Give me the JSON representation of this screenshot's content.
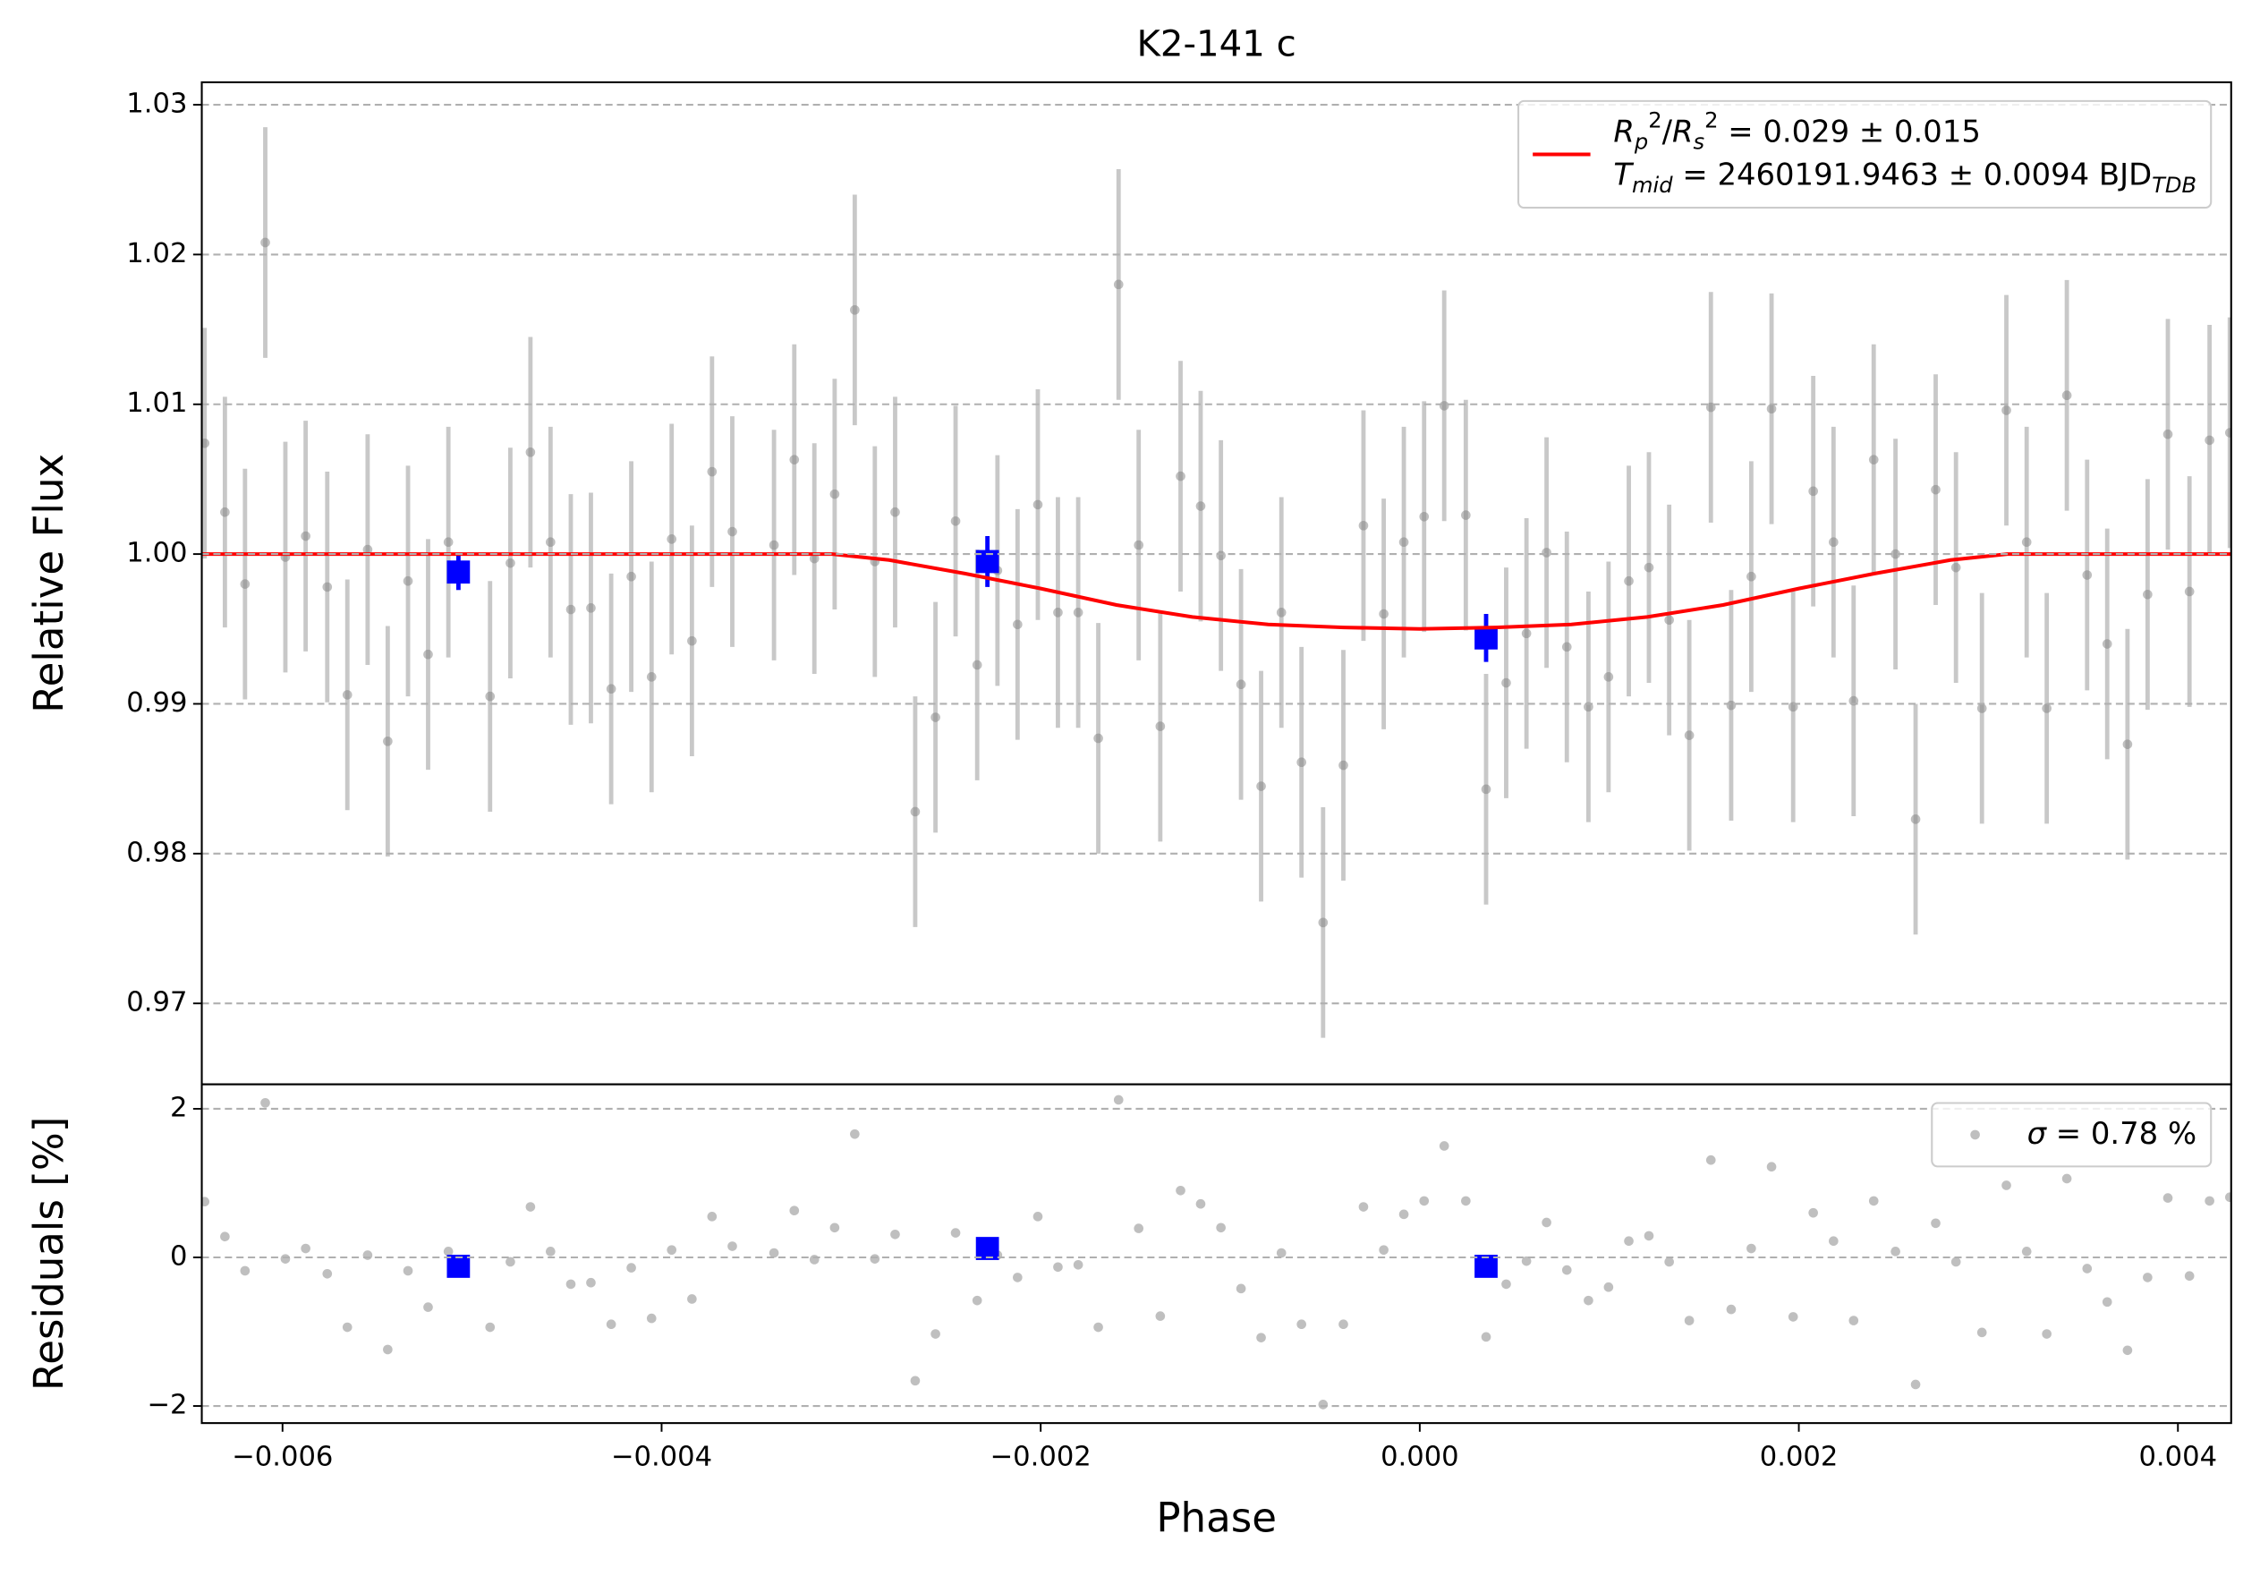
{
  "chart_data": [
    {
      "type": "scatter",
      "title": "K2-141 c",
      "y_label": "Relative Flux",
      "xlim": [
        -0.006426,
        0.004281
      ],
      "ylim": [
        0.9646,
        1.0315
      ],
      "yticks": [
        0.97,
        0.98,
        0.99,
        {
          "value": 1.0,
          "label": "1.00"
        },
        1.01,
        1.02,
        1.03
      ],
      "grid": true,
      "legend": "upper right",
      "series": [
        {
          "marker": "circle",
          "color": "#808080",
          "error": 0.0077,
          "x": [
            -0.006411,
            -0.006304,
            -0.006198,
            -0.006091,
            -0.005985,
            -0.005878,
            -0.005764,
            -0.005658,
            -0.005551,
            -0.005445,
            -0.005338,
            -0.005232,
            -0.005125,
            -0.004905,
            -0.004798,
            -0.004692,
            -0.004586,
            -0.004479,
            -0.004373,
            -0.004266,
            -0.00416,
            -0.004053,
            -0.003947,
            -0.00384,
            -0.003734,
            -0.003627,
            -0.003407,
            -0.0033,
            -0.003194,
            -0.003087,
            -0.002981,
            -0.002875,
            -0.002768,
            -0.002662,
            -0.002555,
            -0.002449,
            -0.002335,
            -0.002228,
            -0.002122,
            -0.002015,
            -0.001909,
            -0.001802,
            -0.001696,
            -0.001589,
            -0.001483,
            -0.001369,
            -0.001262,
            -0.001156,
            -0.001049,
            -0.000943,
            -0.000837,
            -0.00073,
            -0.000624,
            -0.00051,
            -0.000403,
            -0.000297,
            -0.00019,
            -8.4e-05,
            2.3e-05,
            0.000129,
            0.000243,
            0.00035,
            0.000456,
            0.000563,
            0.000669,
            0.000776,
            0.00089,
            0.000996,
            0.001103,
            0.001209,
            0.001316,
            0.001422,
            0.001536,
            0.001643,
            0.001749,
            0.001856,
            0.00197,
            0.002076,
            0.002183,
            0.002289,
            0.002395,
            0.00251,
            0.002616,
            0.002722,
            0.002829,
            0.002966,
            0.003095,
            0.003202,
            0.003308,
            0.003414,
            0.003521,
            0.003627,
            0.003734,
            0.00384,
            0.003947,
            0.004061,
            0.004167,
            0.004274
          ],
          "values": [
            1.0074,
            1.0028,
            0.998,
            1.0208,
            0.9998,
            1.0012,
            0.9978,
            0.9906,
            1.0003,
            0.9875,
            0.9982,
            0.9933,
            1.0008,
            0.9905,
            0.9994,
            1.0068,
            1.0008,
            0.9963,
            0.9964,
            0.991,
            0.9985,
            0.9918,
            1.001,
            0.9942,
            1.0055,
            1.0015,
            1.0006,
            1.0063,
            0.9997,
            1.004,
            1.0163,
            0.9995,
            1.0028,
            0.9828,
            0.9891,
            1.0022,
            0.9926,
            0.9989,
            0.9953,
            1.0033,
            0.9961,
            0.9961,
            0.9877,
            1.018,
            1.0006,
            0.9885,
            1.0052,
            1.0032,
            0.9999,
            0.9913,
            0.9845,
            0.9961,
            0.9861,
            0.9754,
            0.9859,
            1.0019,
            0.996,
            1.0008,
            1.0025,
            1.0099,
            1.0026,
            0.9843,
            0.9914,
            0.9947,
            1.0001,
            0.9938,
            0.9898,
            0.9918,
            0.9982,
            0.9991,
            0.9956,
            0.9879,
            1.0098,
            0.9899,
            0.9985,
            1.0097,
            0.9898,
            1.0042,
            1.0008,
            0.9902,
            1.0063,
            1.0,
            0.9823,
            1.0043,
            0.9991,
            0.9897,
            1.0096,
            1.0008,
            0.9897,
            1.0106,
            0.9986,
            0.994,
            0.9873,
            0.9973,
            1.008,
            0.9975,
            1.0076,
            1.0081
          ]
        },
        {
          "marker": "square",
          "color": "#0000ff",
          "x": [
            -0.005072,
            -0.002281,
            0.00035
          ],
          "values": [
            0.9988,
            0.9995,
            0.9944
          ],
          "errors": [
            0.0012,
            0.0017,
            0.0016
          ]
        },
        {
          "type": "line",
          "color": "#ff0000",
          "x": [
            -0.006426,
            -0.0031,
            -0.0028,
            -0.0024,
            -0.002,
            -0.0016,
            -0.0012,
            -0.0008,
            -0.0004,
            0,
            0.0004,
            0.0008,
            0.0012,
            0.0016,
            0.002,
            0.0024,
            0.0028,
            0.0031,
            0.004281
          ],
          "values": [
            1,
            1,
            0.9996,
            0.9987,
            0.9977,
            0.9966,
            0.9958,
            0.9953,
            0.9951,
            0.995,
            0.9951,
            0.9953,
            0.9958,
            0.9966,
            0.9977,
            0.9987,
            0.9996,
            1,
            1
          ],
          "name_parts": [
            [
              {
                "text": "R",
                "style": "math"
              },
              {
                "text": "p",
                "style": "sub"
              },
              {
                "text": "2",
                "style": "sup"
              },
              {
                "text": "/"
              },
              {
                "text": "R",
                "style": "math"
              },
              {
                "text": "s",
                "style": "sub"
              },
              {
                "text": "2",
                "style": "sup"
              },
              {
                "text": " = 0.029 ± 0.015"
              }
            ],
            [
              {
                "text": "T",
                "style": "math"
              },
              {
                "text": "mid",
                "style": "sub"
              },
              {
                "text": " = 2460191.9463 ± 0.0094 BJD"
              },
              {
                "text": "TDB",
                "style": "sub"
              }
            ]
          ]
        }
      ]
    },
    {
      "type": "scatter",
      "x_label": "Phase",
      "y_label": "Residuals [%]",
      "xlim": [
        -0.006426,
        0.004281
      ],
      "ylim": [
        -2.23,
        2.33
      ],
      "xticks": [
        {
          "value": -0.006,
          "label": "−0.006"
        },
        {
          "value": -0.004,
          "label": "−0.004"
        },
        {
          "value": -0.002,
          "label": "−0.002"
        },
        {
          "value": 0,
          "label": "0.000"
        },
        0.002,
        0.004
      ],
      "yticks": [
        {
          "value": -2,
          "label": "−2"
        },
        0,
        2
      ],
      "grid": true,
      "legend": "upper right",
      "series": [
        {
          "marker": "circle",
          "color": "#808080",
          "x": [
            -0.006411,
            -0.006304,
            -0.006198,
            -0.006091,
            -0.005985,
            -0.005878,
            -0.005764,
            -0.005658,
            -0.005551,
            -0.005445,
            -0.005338,
            -0.005232,
            -0.005125,
            -0.004905,
            -0.004798,
            -0.004692,
            -0.004586,
            -0.004479,
            -0.004373,
            -0.004266,
            -0.00416,
            -0.004053,
            -0.003947,
            -0.00384,
            -0.003734,
            -0.003627,
            -0.003407,
            -0.0033,
            -0.003194,
            -0.003087,
            -0.002981,
            -0.002875,
            -0.002768,
            -0.002662,
            -0.002555,
            -0.002449,
            -0.002335,
            -0.002228,
            -0.002122,
            -0.002015,
            -0.001909,
            -0.001802,
            -0.001696,
            -0.001589,
            -0.001483,
            -0.001369,
            -0.001262,
            -0.001156,
            -0.001049,
            -0.000943,
            -0.000837,
            -0.00073,
            -0.000624,
            -0.00051,
            -0.000403,
            -0.000297,
            -0.00019,
            -8.4e-05,
            2.3e-05,
            0.000129,
            0.000243,
            0.00035,
            0.000456,
            0.000563,
            0.000669,
            0.000776,
            0.00089,
            0.000996,
            0.001103,
            0.001209,
            0.001316,
            0.001422,
            0.001536,
            0.001643,
            0.001749,
            0.001856,
            0.00197,
            0.002076,
            0.002183,
            0.002289,
            0.002395,
            0.00251,
            0.002616,
            0.002722,
            0.002829,
            0.002966,
            0.003095,
            0.003202,
            0.003308,
            0.003414,
            0.003521,
            0.003627,
            0.003734,
            0.00384,
            0.003947,
            0.004061,
            0.004167,
            0.004274
          ],
          "values": [
            0.75,
            0.28,
            -0.18,
            2.08,
            -0.02,
            0.12,
            -0.22,
            -0.94,
            0.03,
            -1.24,
            -0.18,
            -0.67,
            0.08,
            -0.94,
            -0.06,
            0.68,
            0.08,
            -0.36,
            -0.34,
            -0.9,
            -0.14,
            -0.82,
            0.1,
            -0.56,
            0.55,
            0.15,
            0.06,
            0.63,
            -0.03,
            0.4,
            1.66,
            -0.02,
            0.31,
            -1.66,
            -1.03,
            0.33,
            -0.58,
            0.03,
            -0.27,
            0.55,
            -0.13,
            -0.1,
            -0.94,
            2.12,
            0.39,
            -0.79,
            0.9,
            0.72,
            0.4,
            -0.42,
            -1.08,
            0.06,
            -0.9,
            -1.98,
            -0.9,
            0.68,
            0.1,
            0.58,
            0.76,
            1.5,
            0.76,
            -1.07,
            -0.36,
            -0.05,
            0.47,
            -0.17,
            -0.58,
            -0.4,
            0.22,
            0.29,
            -0.06,
            -0.85,
            1.31,
            -0.7,
            0.12,
            1.22,
            -0.8,
            0.6,
            0.22,
            -0.85,
            0.76,
            0.08,
            -1.71,
            0.46,
            -0.06,
            -1.01,
            0.97,
            0.08,
            -1.03,
            1.06,
            -0.15,
            -0.6,
            -1.25,
            -0.27,
            0.8,
            -0.25,
            0.76,
            0.81
          ],
          "name_parts": [
            [
              {
                "text": "σ",
                "style": "math"
              },
              {
                "text": " = 0.78 %"
              }
            ]
          ]
        },
        {
          "marker": "square",
          "color": "#0000ff",
          "x": [
            -0.005072,
            -0.002281,
            0.00035
          ],
          "values": [
            -0.12,
            0.12,
            -0.12
          ]
        }
      ]
    }
  ]
}
